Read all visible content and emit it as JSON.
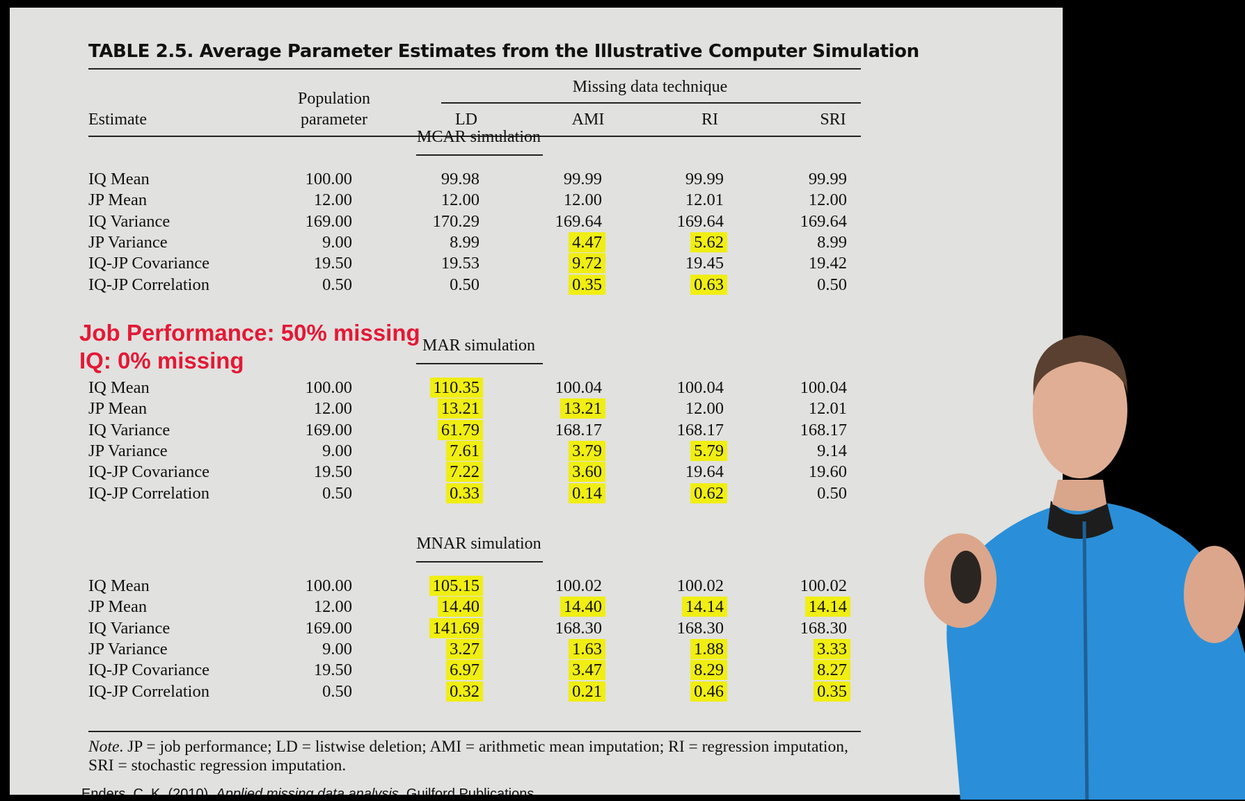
{
  "table": {
    "title": "TABLE 2.5. Average Parameter Estimates from the Illustrative Computer Simulation",
    "col_estimate": "Estimate",
    "col_population_line1": "Population",
    "col_population_line2": "parameter",
    "group_header": "Missing data technique",
    "col_ld": "LD",
    "col_ami": "AMI",
    "col_ri": "RI",
    "col_sri": "SRI",
    "highlight_color": "#f0ee12",
    "sections": [
      {
        "title": "MCAR simulation",
        "rows": [
          {
            "label": "IQ Mean",
            "pop": "100.00",
            "ld": "99.98",
            "ami": "99.99",
            "ri": "99.99",
            "sri": "99.99",
            "hl": []
          },
          {
            "label": "JP Mean",
            "pop": "12.00",
            "ld": "12.00",
            "ami": "12.00",
            "ri": "12.01",
            "sri": "12.00",
            "hl": []
          },
          {
            "label": "IQ Variance",
            "pop": "169.00",
            "ld": "170.29",
            "ami": "169.64",
            "ri": "169.64",
            "sri": "169.64",
            "hl": []
          },
          {
            "label": "JP Variance",
            "pop": "9.00",
            "ld": "8.99",
            "ami": "4.47",
            "ri": "5.62",
            "sri": "8.99",
            "hl": [
              "ami",
              "ri"
            ]
          },
          {
            "label": "IQ-JP Covariance",
            "pop": "19.50",
            "ld": "19.53",
            "ami": "9.72",
            "ri": "19.45",
            "sri": "19.42",
            "hl": [
              "ami"
            ]
          },
          {
            "label": "IQ-JP Correlation",
            "pop": "0.50",
            "ld": "0.50",
            "ami": "0.35",
            "ri": "0.63",
            "sri": "0.50",
            "hl": [
              "ami",
              "ri"
            ]
          }
        ]
      },
      {
        "title": "MAR simulation",
        "rows": [
          {
            "label": "IQ Mean",
            "pop": "100.00",
            "ld": "110.35",
            "ami": "100.04",
            "ri": "100.04",
            "sri": "100.04",
            "hl": [
              "ld"
            ]
          },
          {
            "label": "JP Mean",
            "pop": "12.00",
            "ld": "13.21",
            "ami": "13.21",
            "ri": "12.00",
            "sri": "12.01",
            "hl": [
              "ld",
              "ami"
            ]
          },
          {
            "label": "IQ Variance",
            "pop": "169.00",
            "ld": "61.79",
            "ami": "168.17",
            "ri": "168.17",
            "sri": "168.17",
            "hl": [
              "ld"
            ]
          },
          {
            "label": "JP Variance",
            "pop": "9.00",
            "ld": "7.61",
            "ami": "3.79",
            "ri": "5.79",
            "sri": "9.14",
            "hl": [
              "ld",
              "ami",
              "ri"
            ]
          },
          {
            "label": "IQ-JP Covariance",
            "pop": "19.50",
            "ld": "7.22",
            "ami": "3.60",
            "ri": "19.64",
            "sri": "19.60",
            "hl": [
              "ld",
              "ami"
            ]
          },
          {
            "label": "IQ-JP Correlation",
            "pop": "0.50",
            "ld": "0.33",
            "ami": "0.14",
            "ri": "0.62",
            "sri": "0.50",
            "hl": [
              "ld",
              "ami",
              "ri"
            ]
          }
        ]
      },
      {
        "title": "MNAR simulation",
        "rows": [
          {
            "label": "IQ Mean",
            "pop": "100.00",
            "ld": "105.15",
            "ami": "100.02",
            "ri": "100.02",
            "sri": "100.02",
            "hl": [
              "ld"
            ]
          },
          {
            "label": "JP Mean",
            "pop": "12.00",
            "ld": "14.40",
            "ami": "14.40",
            "ri": "14.14",
            "sri": "14.14",
            "hl": [
              "ld",
              "ami",
              "ri",
              "sri"
            ]
          },
          {
            "label": "IQ Variance",
            "pop": "169.00",
            "ld": "141.69",
            "ami": "168.30",
            "ri": "168.30",
            "sri": "168.30",
            "hl": [
              "ld"
            ]
          },
          {
            "label": "JP Variance",
            "pop": "9.00",
            "ld": "3.27",
            "ami": "1.63",
            "ri": "1.88",
            "sri": "3.33",
            "hl": [
              "ld",
              "ami",
              "ri",
              "sri"
            ]
          },
          {
            "label": "IQ-JP Covariance",
            "pop": "19.50",
            "ld": "6.97",
            "ami": "3.47",
            "ri": "8.29",
            "sri": "8.27",
            "hl": [
              "ld",
              "ami",
              "ri",
              "sri"
            ]
          },
          {
            "label": "IQ-JP Correlation",
            "pop": "0.50",
            "ld": "0.32",
            "ami": "0.21",
            "ri": "0.46",
            "sri": "0.35",
            "hl": [
              "ld",
              "ami",
              "ri",
              "sri"
            ]
          }
        ]
      }
    ],
    "note_label": "Note",
    "note_text": ". JP = job performance; LD = listwise deletion; AMI = arithmetic mean imputation; RI = regression imputation, SRI = stochastic regression imputation."
  },
  "overlay": {
    "line1": "Job Performance: 50% missing",
    "line2": "IQ: 0% missing",
    "color": "#e31936"
  },
  "citation": {
    "prefix": "Enders, C. K. (2010). ",
    "book": "Applied missing data analysis",
    "suffix": ". Guilford Publications."
  }
}
